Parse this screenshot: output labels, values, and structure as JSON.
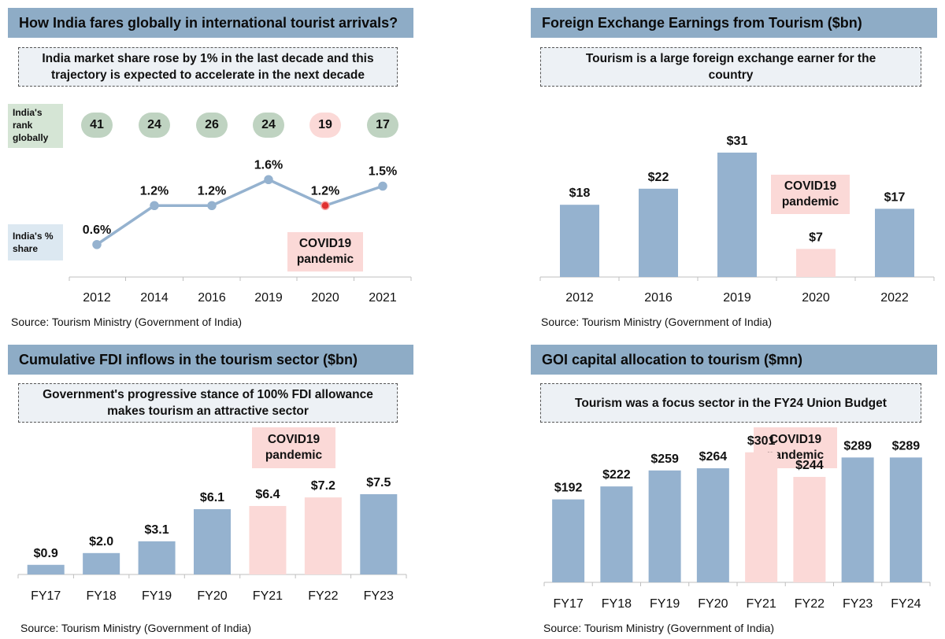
{
  "colors": {
    "header_bg": "#8eacc6",
    "bar_blue": "#95b2cf",
    "bar_pink": "#fbd9d7",
    "line": "#95b2cf",
    "rank_green": "#bfd3c1",
    "rank_pink": "#fbd9d7",
    "side_green": "#d5e5d5",
    "side_blue": "#dce8f1",
    "covid_bg": "#fbd9d7",
    "highlight_point": "#e03030"
  },
  "source_text": "Source: Tourism Ministry (Government of India)",
  "covid_label": "COVID19 pandemic",
  "panel1": {
    "title": "How India fares globally in international tourist arrivals?",
    "callout": "India market share rose by 1% in the last decade and this trajectory is expected to accelerate in the next decade",
    "rank_label": "India's rank globally",
    "share_label": "India's % share",
    "ranks": [
      {
        "value": "41",
        "highlight": false
      },
      {
        "value": "24",
        "highlight": false
      },
      {
        "value": "26",
        "highlight": false
      },
      {
        "value": "24",
        "highlight": false
      },
      {
        "value": "19",
        "highlight": true
      },
      {
        "value": "17",
        "highlight": false
      }
    ]
  },
  "panel2": {
    "title": "Foreign Exchange Earnings from Tourism ($bn)",
    "callout": "Tourism is a large foreign exchange earner for the country"
  },
  "panel3": {
    "title": "Cumulative FDI inflows in the tourism sector ($bn)",
    "callout": "Government's progressive stance of 100% FDI allowance makes tourism an attractive sector"
  },
  "panel4": {
    "title": "GOI capital allocation to tourism ($mn)",
    "callout": "Tourism was a focus sector in the FY24 Union Budget"
  },
  "chart_data": [
    {
      "type": "line",
      "title": "How India fares globally in international tourist arrivals?",
      "categories": [
        "2012",
        "2014",
        "2016",
        "2019",
        "2020",
        "2021"
      ],
      "values": [
        0.6,
        1.2,
        1.2,
        1.6,
        1.2,
        1.5
      ],
      "labels": [
        "0.6%",
        "1.2%",
        "1.2%",
        "1.6%",
        "1.2%",
        "1.5%"
      ],
      "highlight": [
        false,
        false,
        false,
        false,
        true,
        false
      ],
      "ylabel": "India's % share",
      "ylim": [
        0,
        2.1
      ]
    },
    {
      "type": "bar",
      "title": "Foreign Exchange Earnings from Tourism ($bn)",
      "categories": [
        "2012",
        "2016",
        "2019",
        "2020",
        "2022"
      ],
      "values": [
        18,
        22,
        31,
        7,
        17
      ],
      "labels": [
        "$18",
        "$22",
        "$31",
        "$7",
        "$17"
      ],
      "highlight": [
        false,
        false,
        false,
        true,
        false
      ],
      "ylim": [
        0,
        36
      ]
    },
    {
      "type": "bar",
      "title": "Cumulative FDI inflows in the tourism sector ($bn)",
      "categories": [
        "FY17",
        "FY18",
        "FY19",
        "FY20",
        "FY21",
        "FY22",
        "FY23"
      ],
      "values": [
        0.9,
        2.0,
        3.1,
        6.1,
        6.4,
        7.2,
        7.5
      ],
      "labels": [
        "$0.9",
        "$2.0",
        "$3.1",
        "$6.1",
        "$6.4",
        "$7.2",
        "$7.5"
      ],
      "highlight": [
        false,
        false,
        false,
        false,
        true,
        true,
        false
      ],
      "ylim": [
        0,
        9
      ]
    },
    {
      "type": "bar",
      "title": "GOI capital allocation to tourism ($mn)",
      "categories": [
        "FY17",
        "FY18",
        "FY19",
        "FY20",
        "FY21",
        "FY22",
        "FY23",
        "FY24"
      ],
      "values": [
        192,
        222,
        259,
        264,
        301,
        244,
        289,
        289
      ],
      "labels": [
        "$192",
        "$222",
        "$259",
        "$264",
        "$301",
        "$244",
        "$289",
        "$289"
      ],
      "highlight": [
        false,
        false,
        false,
        false,
        true,
        true,
        false,
        false
      ],
      "ylim": [
        0,
        400
      ]
    }
  ]
}
